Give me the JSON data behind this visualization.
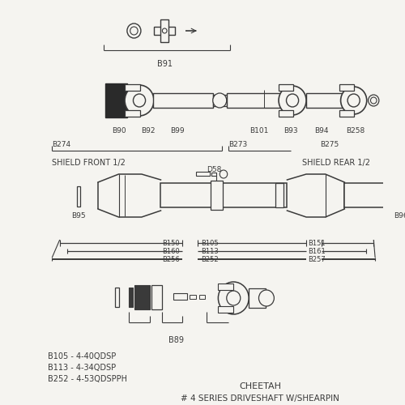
{
  "bg_color": "#f5f4f0",
  "line_color": "#3a3a3a",
  "title": "CHEETAH",
  "subtitle": "# 4 SERIES DRIVESHAFT W/SHEARPIN",
  "notes": [
    "B105 - 4-40QDSP",
    "B113 - 4-34QDSP",
    "B252 - 4-53QDSPPH"
  ]
}
